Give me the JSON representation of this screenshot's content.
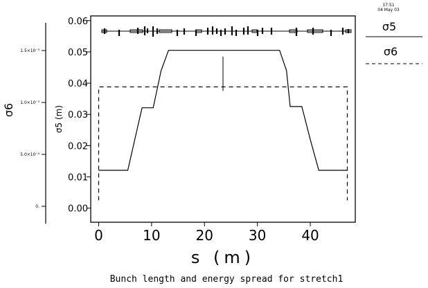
{
  "chart_data": {
    "type": "line",
    "title": "Bunch length and energy spread for stretch1",
    "timestamp": {
      "time": "17:51",
      "date": "04 May 03"
    },
    "xlabel": "s (m)",
    "xlim": [
      -1.5,
      48.5
    ],
    "xticks": [
      0,
      10,
      20,
      30,
      40
    ],
    "left_axis": {
      "label": "σ5 (m)",
      "ylim": [
        -0.0045,
        0.0615
      ],
      "ticks": [
        "0.00",
        "0.01",
        "0.02",
        "0.03",
        "0.04",
        "0.05",
        "0.06"
      ],
      "tick_values": [
        0,
        0.01,
        0.02,
        0.03,
        0.04,
        0.05,
        0.06
      ]
    },
    "right_axis": {
      "label": "σ6",
      "ticks": [
        "0.",
        "5.0×10⁻⁴",
        "1.0×10⁻³",
        "1.5×10⁻³"
      ],
      "tick_values": [
        0,
        0.0005,
        0.001,
        0.0015
      ]
    },
    "legend": [
      {
        "name": "σ5",
        "style": "solid"
      },
      {
        "name": "σ6",
        "style": "dashed"
      }
    ],
    "series": [
      {
        "name": "σ5",
        "axis": "left",
        "style": "solid",
        "x": [
          0,
          5.5,
          7.5,
          8.2,
          10.3,
          11.8,
          13.2,
          23.5,
          34.2,
          35.5,
          36.2,
          38.4,
          40,
          41.6,
          47
        ],
        "y": [
          0.0121,
          0.0121,
          0.027,
          0.0321,
          0.0321,
          0.044,
          0.0505,
          0.0505,
          0.0505,
          0.044,
          0.0325,
          0.0325,
          0.0219,
          0.0121,
          0.0121
        ]
      },
      {
        "name": "σ6",
        "axis": "left-scaled",
        "style": "dashed",
        "x": [
          0,
          0,
          47,
          47
        ],
        "y": [
          0.0025,
          0.0388,
          0.0388,
          0.0025
        ]
      }
    ],
    "marker_line": {
      "x": 23.5,
      "y": [
        0.0375,
        0.0485
      ]
    }
  }
}
